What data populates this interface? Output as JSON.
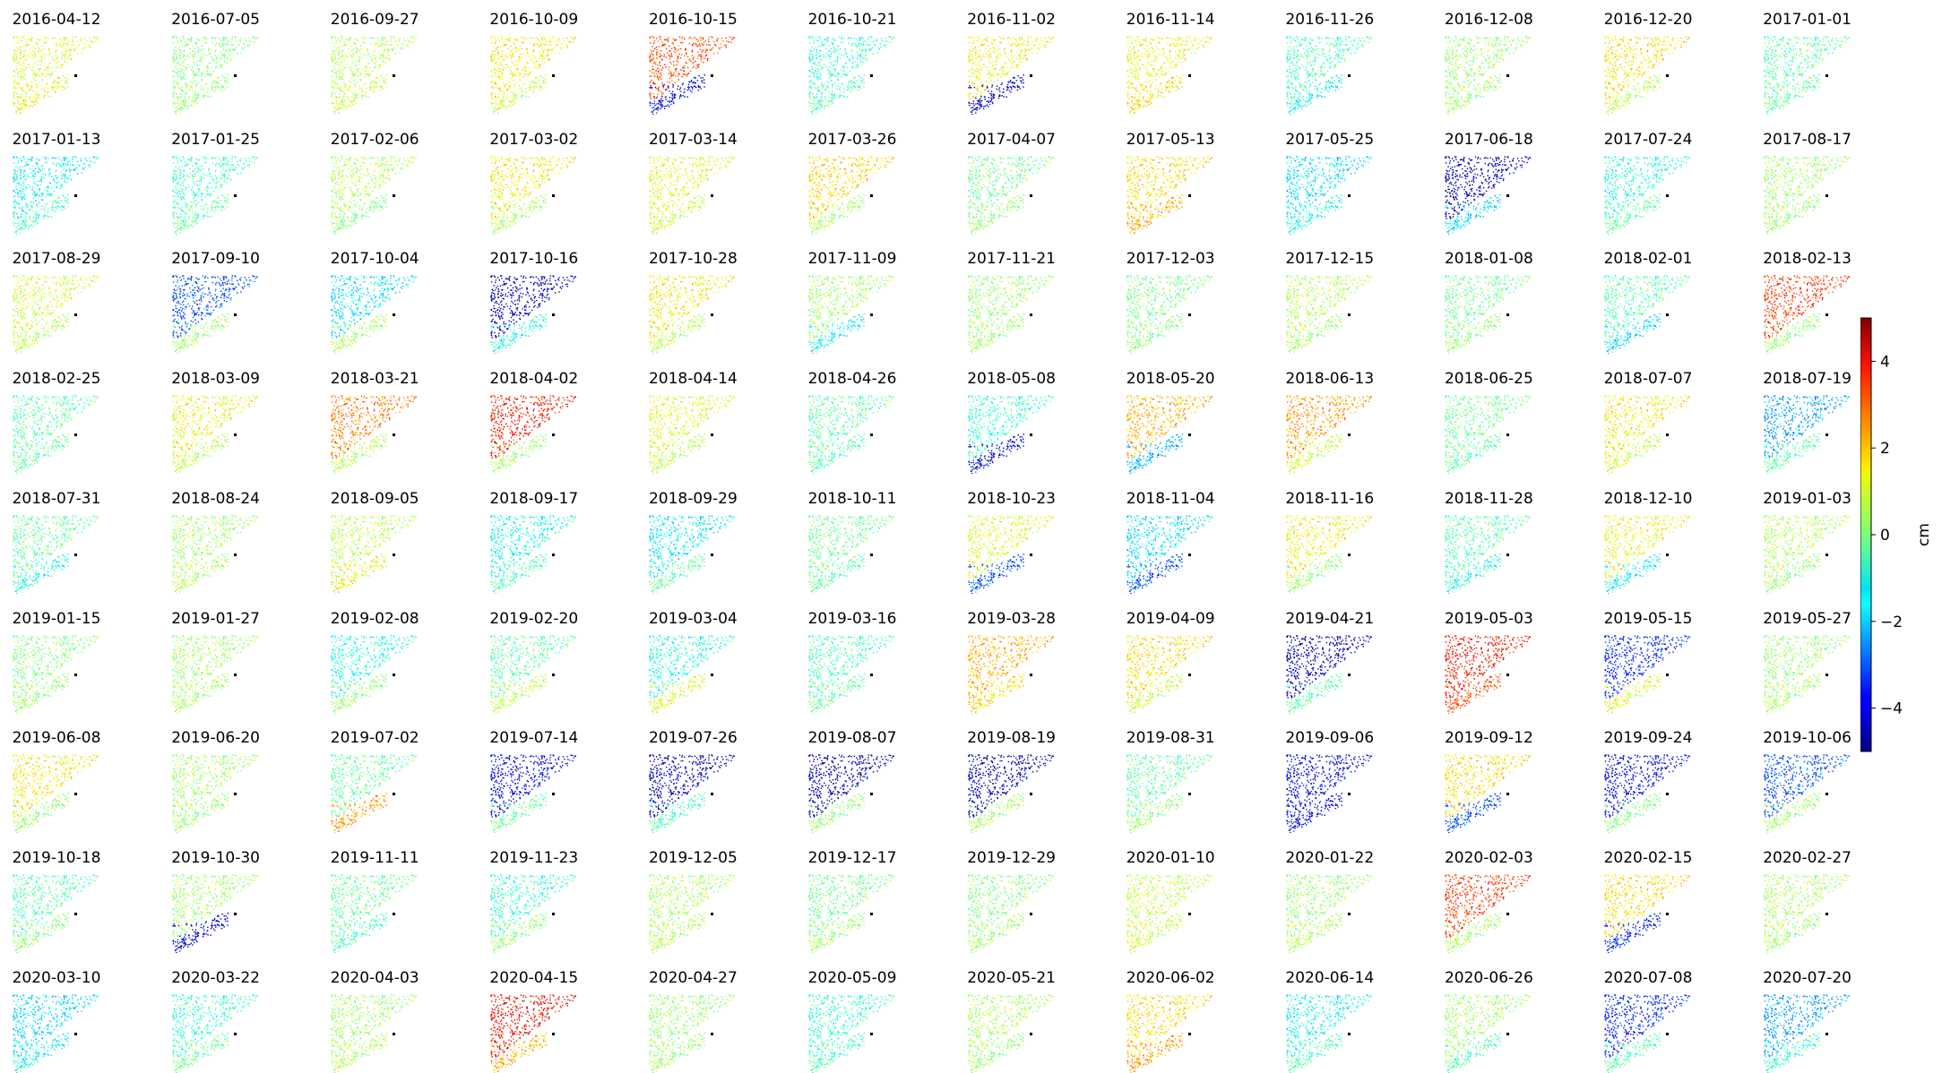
{
  "chart_data": {
    "type": "heatmap",
    "layout": {
      "rows": 9,
      "cols": 12
    },
    "panels": [
      "2016-04-12",
      "2016-07-05",
      "2016-09-27",
      "2016-10-09",
      "2016-10-15",
      "2016-10-21",
      "2016-11-02",
      "2016-11-14",
      "2016-11-26",
      "2016-12-08",
      "2016-12-20",
      "2017-01-01",
      "2017-01-13",
      "2017-01-25",
      "2017-02-06",
      "2017-03-02",
      "2017-03-14",
      "2017-03-26",
      "2017-04-07",
      "2017-05-13",
      "2017-05-25",
      "2017-06-18",
      "2017-07-24",
      "2017-08-17",
      "2017-08-29",
      "2017-09-10",
      "2017-10-04",
      "2017-10-16",
      "2017-10-28",
      "2017-11-09",
      "2017-11-21",
      "2017-12-03",
      "2017-12-15",
      "2018-01-08",
      "2018-02-01",
      "2018-02-13",
      "2018-02-25",
      "2018-03-09",
      "2018-03-21",
      "2018-04-02",
      "2018-04-14",
      "2018-04-26",
      "2018-05-08",
      "2018-05-20",
      "2018-06-13",
      "2018-06-25",
      "2018-07-07",
      "2018-07-19",
      "2018-07-31",
      "2018-08-24",
      "2018-09-05",
      "2018-09-17",
      "2018-09-29",
      "2018-10-11",
      "2018-10-23",
      "2018-11-04",
      "2018-11-16",
      "2018-11-28",
      "2018-12-10",
      "2019-01-03",
      "2019-01-15",
      "2019-01-27",
      "2019-02-08",
      "2019-02-20",
      "2019-03-04",
      "2019-03-16",
      "2019-03-28",
      "2019-04-09",
      "2019-04-21",
      "2019-05-03",
      "2019-05-15",
      "2019-05-27",
      "2019-06-08",
      "2019-06-20",
      "2019-07-02",
      "2019-07-14",
      "2019-07-26",
      "2019-08-07",
      "2019-08-19",
      "2019-08-31",
      "2019-09-06",
      "2019-09-12",
      "2019-09-24",
      "2019-10-06",
      "2019-10-18",
      "2019-10-30",
      "2019-11-11",
      "2019-11-23",
      "2019-12-05",
      "2019-12-17",
      "2019-12-29",
      "2020-01-10",
      "2020-01-22",
      "2020-02-03",
      "2020-02-15",
      "2020-02-27",
      "2020-03-10",
      "2020-03-22",
      "2020-04-03",
      "2020-04-15",
      "2020-04-27",
      "2020-05-09",
      "2020-05-21",
      "2020-06-02",
      "2020-06-14",
      "2020-06-26",
      "2020-07-08",
      "2020-07-20"
    ],
    "patterns": [
      [
        0.9,
        1.2
      ],
      [
        0.0,
        0.2
      ],
      [
        0.5,
        0.8
      ],
      [
        1.3,
        0.8
      ],
      [
        3.0,
        -4.0
      ],
      [
        -0.8,
        -0.5
      ],
      [
        1.2,
        -4.5
      ],
      [
        1.1,
        1.5
      ],
      [
        -0.6,
        -1.2
      ],
      [
        0.2,
        0.3
      ],
      [
        1.4,
        0.6
      ],
      [
        -0.4,
        -0.3
      ],
      [
        -1.3,
        -0.6
      ],
      [
        -0.7,
        -0.3
      ],
      [
        0.5,
        0.0
      ],
      [
        1.3,
        0.4
      ],
      [
        1.0,
        0.8
      ],
      [
        1.6,
        0.4
      ],
      [
        -0.2,
        0.2
      ],
      [
        1.5,
        2.0
      ],
      [
        -1.5,
        -1.0
      ],
      [
        -4.5,
        -1.5
      ],
      [
        -1.0,
        -0.3
      ],
      [
        0.3,
        0.2
      ],
      [
        0.8,
        0.6
      ],
      [
        -3.0,
        0.3
      ],
      [
        -1.5,
        0.4
      ],
      [
        -4.5,
        -1.0
      ],
      [
        1.3,
        0.6
      ],
      [
        0.3,
        -1.2
      ],
      [
        0.2,
        0.3
      ],
      [
        -0.1,
        0.1
      ],
      [
        0.5,
        0.3
      ],
      [
        -0.2,
        0.2
      ],
      [
        -0.5,
        -1.5
      ],
      [
        3.2,
        0.2
      ],
      [
        -0.4,
        -0.3
      ],
      [
        1.2,
        0.6
      ],
      [
        2.5,
        0.5
      ],
      [
        3.6,
        0.3
      ],
      [
        1.0,
        0.6
      ],
      [
        -0.4,
        -0.5
      ],
      [
        -0.8,
        -4.0
      ],
      [
        2.0,
        -2.0
      ],
      [
        2.2,
        0.8
      ],
      [
        -0.2,
        -0.4
      ],
      [
        1.3,
        0.8
      ],
      [
        -2.2,
        -0.4
      ],
      [
        -0.3,
        -1.0
      ],
      [
        0.3,
        0.5
      ],
      [
        0.6,
        1.2
      ],
      [
        -1.2,
        -0.5
      ],
      [
        -1.4,
        -0.3
      ],
      [
        -0.2,
        -0.4
      ],
      [
        1.0,
        -3.0
      ],
      [
        -1.5,
        -3.0
      ],
      [
        1.2,
        0.2
      ],
      [
        -0.5,
        -1.0
      ],
      [
        1.1,
        -1.2
      ],
      [
        0.5,
        0.2
      ],
      [
        0.0,
        0.2
      ],
      [
        0.3,
        0.4
      ],
      [
        -1.0,
        0.2
      ],
      [
        -0.4,
        0.6
      ],
      [
        -1.0,
        1.0
      ],
      [
        -0.6,
        -0.3
      ],
      [
        2.0,
        1.5
      ],
      [
        1.5,
        0.8
      ],
      [
        -4.6,
        -0.4
      ],
      [
        3.6,
        3.0
      ],
      [
        -3.5,
        1.0
      ],
      [
        0.2,
        0.4
      ],
      [
        1.3,
        0.2
      ],
      [
        0.3,
        0.2
      ],
      [
        -0.3,
        2.2
      ],
      [
        -4.0,
        -0.2
      ],
      [
        -4.5,
        -0.6
      ],
      [
        -4.6,
        0.2
      ],
      [
        -4.5,
        0.4
      ],
      [
        -0.4,
        0.2
      ],
      [
        -4.0,
        -4.0
      ],
      [
        1.5,
        -3.0
      ],
      [
        -4.0,
        0.0
      ],
      [
        -3.0,
        0.3
      ],
      [
        -0.5,
        0.1
      ],
      [
        0.3,
        -4.3
      ],
      [
        -0.3,
        -0.6
      ],
      [
        -0.8,
        0.2
      ],
      [
        0.4,
        0.5
      ],
      [
        -0.2,
        0.3
      ],
      [
        0.0,
        0.3
      ],
      [
        0.7,
        0.8
      ],
      [
        0.2,
        0.5
      ],
      [
        3.2,
        0.4
      ],
      [
        1.5,
        -3.5
      ],
      [
        0.4,
        0.3
      ],
      [
        -1.6,
        -1.2
      ],
      [
        -0.8,
        -0.2
      ],
      [
        0.3,
        0.5
      ],
      [
        3.8,
        2.0
      ],
      [
        0.2,
        0.3
      ],
      [
        -0.8,
        -0.6
      ],
      [
        0.4,
        0.2
      ],
      [
        1.5,
        2.2
      ],
      [
        -1.2,
        -0.5
      ],
      [
        0.3,
        -0.5
      ],
      [
        -3.5,
        -0.5
      ],
      [
        -2.2,
        -0.8
      ]
    ],
    "colorbar": {
      "label": "cm",
      "range": [
        -5,
        5
      ],
      "ticks": [
        4,
        2,
        0,
        -2,
        -4
      ],
      "tick_labels": [
        "4",
        "2",
        "0",
        "−2",
        "−4"
      ],
      "colormap": "jet"
    }
  }
}
